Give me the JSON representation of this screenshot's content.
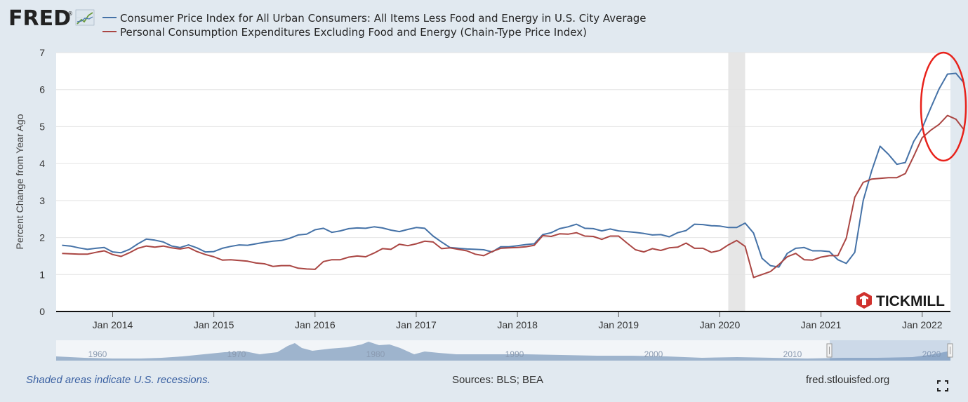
{
  "logo": {
    "text": "FRED",
    "registered": "®"
  },
  "watermark": {
    "text": "TICKMILL",
    "icon": "tickmill-hex-logo-icon"
  },
  "footer": {
    "note": "Shaded areas indicate U.S. recessions.",
    "sources": "Sources: BLS; BEA",
    "site": "fred.stlouisfed.org"
  },
  "colors": {
    "cpi": "#4572a7",
    "pce": "#aa4643",
    "highlight": "#e8221b",
    "recession": "#e6e6e6",
    "background": "#e1e9f0"
  },
  "navigator": {
    "year_labels": [
      "1960",
      "1970",
      "1980",
      "1990",
      "2000",
      "2010",
      "2020"
    ]
  },
  "chart_data": {
    "type": "line",
    "title": "",
    "xlabel": "",
    "ylabel": "Percent Change from Year Ago",
    "ylim": [
      0,
      7
    ],
    "yticks": [
      0,
      1,
      2,
      3,
      4,
      5,
      6,
      7
    ],
    "xticks": [
      "Jan 2014",
      "Jan 2015",
      "Jan 2016",
      "Jan 2017",
      "Jan 2018",
      "Jan 2019",
      "Jan 2020",
      "Jan 2021",
      "Jan 2022"
    ],
    "x_start": "2013-07",
    "x_end": "2022-04",
    "grid": true,
    "legend": "top-left",
    "recession": {
      "start": "2020-02",
      "end": "2020-04"
    },
    "annotation": {
      "type": "circle",
      "color": "#e8221b",
      "around": "2021-11 to 2022-04"
    },
    "series": [
      {
        "name": "Consumer Price Index for All Urban Consumers: All Items Less Food and Energy in U.S. City Average",
        "color": "#4572a7",
        "values": [
          1.79,
          1.77,
          1.72,
          1.68,
          1.71,
          1.73,
          1.61,
          1.59,
          1.68,
          1.83,
          1.96,
          1.93,
          1.88,
          1.77,
          1.73,
          1.8,
          1.72,
          1.61,
          1.62,
          1.71,
          1.76,
          1.8,
          1.79,
          1.83,
          1.87,
          1.9,
          1.92,
          1.98,
          2.07,
          2.09,
          2.21,
          2.25,
          2.14,
          2.18,
          2.24,
          2.26,
          2.25,
          2.29,
          2.26,
          2.2,
          2.16,
          2.22,
          2.27,
          2.25,
          2.04,
          1.88,
          1.73,
          1.71,
          1.69,
          1.68,
          1.67,
          1.61,
          1.75,
          1.75,
          1.78,
          1.81,
          1.83,
          2.08,
          2.13,
          2.24,
          2.29,
          2.36,
          2.25,
          2.24,
          2.18,
          2.23,
          2.18,
          2.16,
          2.14,
          2.11,
          2.07,
          2.08,
          2.02,
          2.13,
          2.19,
          2.36,
          2.35,
          2.32,
          2.31,
          2.27,
          2.27,
          2.39,
          2.12,
          1.44,
          1.24,
          1.2,
          1.57,
          1.71,
          1.73,
          1.64,
          1.64,
          1.62,
          1.4,
          1.3,
          1.6,
          3.0,
          3.8,
          4.47,
          4.25,
          3.98,
          4.03,
          4.6,
          4.96,
          5.5,
          6.02,
          6.42,
          6.44,
          6.17
        ]
      },
      {
        "name": "Personal Consumption Expenditures Excluding Food and Energy (Chain-Type Price Index)",
        "color": "#aa4643",
        "values": [
          1.57,
          1.56,
          1.55,
          1.55,
          1.6,
          1.64,
          1.54,
          1.49,
          1.59,
          1.71,
          1.77,
          1.74,
          1.77,
          1.72,
          1.69,
          1.73,
          1.62,
          1.54,
          1.48,
          1.39,
          1.4,
          1.38,
          1.36,
          1.31,
          1.29,
          1.22,
          1.24,
          1.24,
          1.17,
          1.15,
          1.14,
          1.35,
          1.4,
          1.4,
          1.47,
          1.5,
          1.48,
          1.58,
          1.7,
          1.68,
          1.82,
          1.78,
          1.83,
          1.9,
          1.88,
          1.7,
          1.72,
          1.68,
          1.64,
          1.55,
          1.51,
          1.62,
          1.71,
          1.72,
          1.73,
          1.75,
          1.79,
          2.05,
          2.03,
          2.1,
          2.09,
          2.13,
          2.04,
          2.03,
          1.95,
          2.04,
          2.04,
          1.85,
          1.67,
          1.61,
          1.7,
          1.65,
          1.72,
          1.74,
          1.85,
          1.71,
          1.71,
          1.6,
          1.65,
          1.8,
          1.92,
          1.76,
          0.92,
          1.0,
          1.08,
          1.27,
          1.48,
          1.57,
          1.4,
          1.39,
          1.47,
          1.51,
          1.51,
          1.98,
          3.09,
          3.49,
          3.58,
          3.6,
          3.62,
          3.62,
          3.73,
          4.2,
          4.7,
          4.9,
          5.06,
          5.3,
          5.2,
          4.9
        ]
      }
    ]
  }
}
